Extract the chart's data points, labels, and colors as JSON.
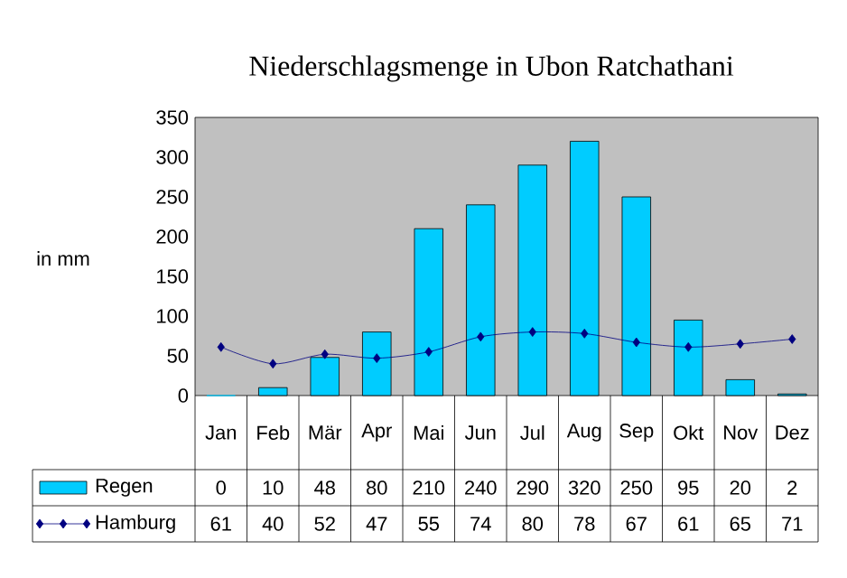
{
  "chart_data": {
    "type": "bar",
    "title": "Niederschlagsmenge in Ubon Ratchathani",
    "ylabel": "in mm",
    "categories": [
      "Jan",
      "Feb",
      "Mär",
      "Apr",
      "Mai",
      "Jun",
      "Jul",
      "Aug",
      "Sep",
      "Okt",
      "Nov",
      "Dez"
    ],
    "series": [
      {
        "name": "Regen",
        "color": "#00ccff",
        "values": [
          0,
          10,
          48,
          80,
          210,
          240,
          290,
          320,
          250,
          95,
          20,
          2
        ]
      },
      {
        "name": "Hamburg",
        "type": "line",
        "color": "#000080",
        "marker": "diamond",
        "values": [
          61,
          40,
          52,
          47,
          55,
          74,
          80,
          78,
          67,
          61,
          65,
          71
        ]
      }
    ],
    "ylim": [
      0,
      350
    ],
    "yticks": [
      0,
      50,
      100,
      150,
      200,
      250,
      300,
      350
    ],
    "data_labels": true,
    "legend": "bottom"
  }
}
